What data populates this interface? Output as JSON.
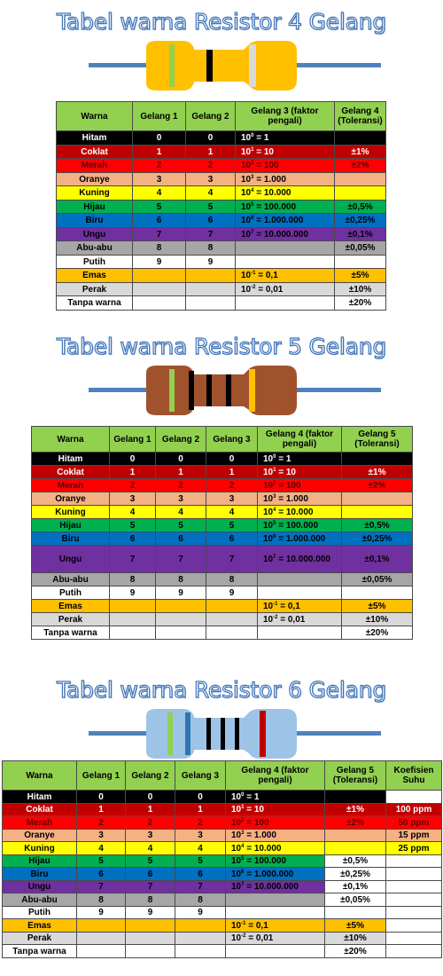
{
  "colors": {
    "Hitam": "#000000",
    "Coklat": "#c00000",
    "Merah": "#ff0000",
    "Oranye": "#f4b183",
    "Kuning": "#ffff00",
    "Hijau": "#00b050",
    "Biru": "#0070c0",
    "Ungu": "#7030a0",
    "Abu-abu": "#a6a6a6",
    "Putih": "#ffffff",
    "Emas": "#ffc000",
    "Perak": "#d9d9d9",
    "Tanpa warna": "#ffffff",
    "header": "#92d050",
    "title_outline": "#3f74b8"
  },
  "sections": [
    {
      "title": "Tabel warna Resistor 4 Gelang",
      "resistor_image": {
        "body_color": "#ffc000",
        "bands": [
          "green",
          "gold",
          "black",
          "silver"
        ]
      },
      "headers": [
        "Warna",
        "Gelang 1",
        "Gelang 2",
        "Gelang 3 (faktor pengali)",
        "Gelang 4 (Toleransi)"
      ],
      "rows": [
        {
          "warna": "Hitam",
          "g1": "0",
          "g2": "0",
          "mult_base": "10",
          "mult_exp": "0",
          "mult_val": " = 1",
          "tol": ""
        },
        {
          "warna": "Coklat",
          "g1": "1",
          "g2": "1",
          "mult_base": "10",
          "mult_exp": "1",
          "mult_val": " = 10",
          "tol": "±1%"
        },
        {
          "warna": "Merah",
          "g1": "2",
          "g2": "2",
          "mult_base": "10",
          "mult_exp": "2",
          "mult_val": " = 100",
          "tol": "±2%"
        },
        {
          "warna": "Oranye",
          "g1": "3",
          "g2": "3",
          "mult_base": "10",
          "mult_exp": "3",
          "mult_val": " = 1.000",
          "tol": ""
        },
        {
          "warna": "Kuning",
          "g1": "4",
          "g2": "4",
          "mult_base": "10",
          "mult_exp": "4",
          "mult_val": " = 10.000",
          "tol": ""
        },
        {
          "warna": "Hijau",
          "g1": "5",
          "g2": "5",
          "mult_base": "10",
          "mult_exp": "5",
          "mult_val": " = 100.000",
          "tol": "±0,5%"
        },
        {
          "warna": "Biru",
          "g1": "6",
          "g2": "6",
          "mult_base": "10",
          "mult_exp": "6",
          "mult_val": " = 1.000.000",
          "tol": "±0,25%"
        },
        {
          "warna": "Ungu",
          "g1": "7",
          "g2": "7",
          "mult_base": "10",
          "mult_exp": "7",
          "mult_val": " = 10.000.000",
          "tol": "±0,1%"
        },
        {
          "warna": "Abu-abu",
          "g1": "8",
          "g2": "8",
          "mult_base": "",
          "mult_exp": "",
          "mult_val": "",
          "tol": "±0,05%"
        },
        {
          "warna": "Putih",
          "g1": "9",
          "g2": "9",
          "mult_base": "",
          "mult_exp": "",
          "mult_val": "",
          "tol": ""
        },
        {
          "warna": "Emas",
          "g1": "",
          "g2": "",
          "mult_base": "10",
          "mult_exp": "-1",
          "mult_val": " = 0,1",
          "tol": "±5%"
        },
        {
          "warna": "Perak",
          "g1": "",
          "g2": "",
          "mult_base": "10",
          "mult_exp": "-2",
          "mult_val": " = 0,01",
          "tol": "±10%"
        },
        {
          "warna": "Tanpa warna",
          "g1": "",
          "g2": "",
          "mult_base": "",
          "mult_exp": "",
          "mult_val": "",
          "tol": "±20%"
        }
      ]
    },
    {
      "title": "Tabel warna Resistor 5 Gelang",
      "resistor_image": {
        "body_color": "#a0522d",
        "bands": [
          "green",
          "black",
          "black",
          "black",
          "gold"
        ]
      },
      "headers": [
        "Warna",
        "Gelang 1",
        "Gelang 2",
        "Gelang 3",
        "Gelang 4 (faktor pengali)",
        "Gelang 5 (Toleransi)"
      ],
      "rows": [
        {
          "warna": "Hitam",
          "g1": "0",
          "g2": "0",
          "g3": "0",
          "mult_base": "10",
          "mult_exp": "0",
          "mult_val": " = 1",
          "tol": ""
        },
        {
          "warna": "Coklat",
          "g1": "1",
          "g2": "1",
          "g3": "1",
          "mult_base": "10",
          "mult_exp": "1",
          "mult_val": " = 10",
          "tol": "±1%"
        },
        {
          "warna": "Merah",
          "g1": "2",
          "g2": "2",
          "g3": "2",
          "mult_base": "10",
          "mult_exp": "2",
          "mult_val": " = 100",
          "tol": "±2%"
        },
        {
          "warna": "Oranye",
          "g1": "3",
          "g2": "3",
          "g3": "3",
          "mult_base": "10",
          "mult_exp": "3",
          "mult_val": " = 1.000",
          "tol": ""
        },
        {
          "warna": "Kuning",
          "g1": "4",
          "g2": "4",
          "g3": "4",
          "mult_base": "10",
          "mult_exp": "4",
          "mult_val": " = 10.000",
          "tol": ""
        },
        {
          "warna": "Hijau",
          "g1": "5",
          "g2": "5",
          "g3": "5",
          "mult_base": "10",
          "mult_exp": "5",
          "mult_val": " = 100.000",
          "tol": "±0,5%"
        },
        {
          "warna": "Biru",
          "g1": "6",
          "g2": "6",
          "g3": "6",
          "mult_base": "10",
          "mult_exp": "6",
          "mult_val": " = 1.000.000",
          "tol": "±0,25%"
        },
        {
          "warna": "Ungu",
          "g1": "7",
          "g2": "7",
          "g3": "7",
          "mult_base": "10",
          "mult_exp": "7",
          "mult_val": " = 10.000.000",
          "tol": "±0,1%"
        },
        {
          "warna": "Abu-abu",
          "g1": "8",
          "g2": "8",
          "g3": "8",
          "mult_base": "",
          "mult_exp": "",
          "mult_val": "",
          "tol": "±0,05%"
        },
        {
          "warna": "Putih",
          "g1": "9",
          "g2": "9",
          "g3": "9",
          "mult_base": "",
          "mult_exp": "",
          "mult_val": "",
          "tol": ""
        },
        {
          "warna": "Emas",
          "g1": "",
          "g2": "",
          "g3": "",
          "mult_base": "10",
          "mult_exp": "-1",
          "mult_val": " = 0,1",
          "tol": "±5%"
        },
        {
          "warna": "Perak",
          "g1": "",
          "g2": "",
          "g3": "",
          "mult_base": "10",
          "mult_exp": "-2",
          "mult_val": " = 0,01",
          "tol": "±10%"
        },
        {
          "warna": "Tanpa warna",
          "g1": "",
          "g2": "",
          "g3": "",
          "mult_base": "",
          "mult_exp": "",
          "mult_val": "",
          "tol": "±20%"
        }
      ]
    },
    {
      "title": "Tabel warna Resistor 6 Gelang",
      "resistor_image": {
        "body_color": "#9dc3e6",
        "bands": [
          "green",
          "blue",
          "black",
          "black",
          "black",
          "red"
        ]
      },
      "headers": [
        "Warna",
        "Gelang 1",
        "Gelang 2",
        "Gelang 3",
        "Gelang 4 (faktor pengali)",
        "Gelang 5 (Toleransi)",
        "Koefisien Suhu"
      ],
      "rows": [
        {
          "warna": "Hitam",
          "g1": "0",
          "g2": "0",
          "g3": "0",
          "mult_base": "10",
          "mult_exp": "0",
          "mult_val": " = 1",
          "tol": "",
          "suhu": ""
        },
        {
          "warna": "Coklat",
          "g1": "1",
          "g2": "1",
          "g3": "1",
          "mult_base": "10",
          "mult_exp": "1",
          "mult_val": " = 10",
          "tol": "±1%",
          "suhu": "100 ppm"
        },
        {
          "warna": "Merah",
          "g1": "2",
          "g2": "2",
          "g3": "2",
          "mult_base": "10",
          "mult_exp": "2",
          "mult_val": " = 100",
          "tol": "±2%",
          "suhu": "50 ppm"
        },
        {
          "warna": "Oranye",
          "g1": "3",
          "g2": "3",
          "g3": "3",
          "mult_base": "10",
          "mult_exp": "3",
          "mult_val": " = 1.000",
          "tol": "",
          "suhu": "15 ppm"
        },
        {
          "warna": "Kuning",
          "g1": "4",
          "g2": "4",
          "g3": "4",
          "mult_base": "10",
          "mult_exp": "4",
          "mult_val": " = 10.000",
          "tol": "",
          "suhu": "25 ppm"
        },
        {
          "warna": "Hijau",
          "g1": "5",
          "g2": "5",
          "g3": "5",
          "mult_base": "10",
          "mult_exp": "5",
          "mult_val": " = 100.000",
          "tol": "±0,5%",
          "suhu": ""
        },
        {
          "warna": "Biru",
          "g1": "6",
          "g2": "6",
          "g3": "6",
          "mult_base": "10",
          "mult_exp": "6",
          "mult_val": " = 1.000.000",
          "tol": "±0,25%",
          "suhu": ""
        },
        {
          "warna": "Ungu",
          "g1": "7",
          "g2": "7",
          "g3": "7",
          "mult_base": "10",
          "mult_exp": "7",
          "mult_val": " = 10.000.000",
          "tol": "±0,1%",
          "suhu": ""
        },
        {
          "warna": "Abu-abu",
          "g1": "8",
          "g2": "8",
          "g3": "8",
          "mult_base": "",
          "mult_exp": "",
          "mult_val": "",
          "tol": "±0,05%",
          "suhu": ""
        },
        {
          "warna": "Putih",
          "g1": "9",
          "g2": "9",
          "g3": "9",
          "mult_base": "",
          "mult_exp": "",
          "mult_val": "",
          "tol": "",
          "suhu": ""
        },
        {
          "warna": "Emas",
          "g1": "",
          "g2": "",
          "g3": "",
          "mult_base": "10",
          "mult_exp": "-1",
          "mult_val": " = 0,1",
          "tol": "±5%",
          "suhu": ""
        },
        {
          "warna": "Perak",
          "g1": "",
          "g2": "",
          "g3": "",
          "mult_base": "10",
          "mult_exp": "-2",
          "mult_val": " = 0,01",
          "tol": "±10%",
          "suhu": ""
        },
        {
          "warna": "Tanpa warna",
          "g1": "",
          "g2": "",
          "g3": "",
          "mult_base": "",
          "mult_exp": "",
          "mult_val": "",
          "tol": "±20%",
          "suhu": ""
        }
      ]
    }
  ]
}
